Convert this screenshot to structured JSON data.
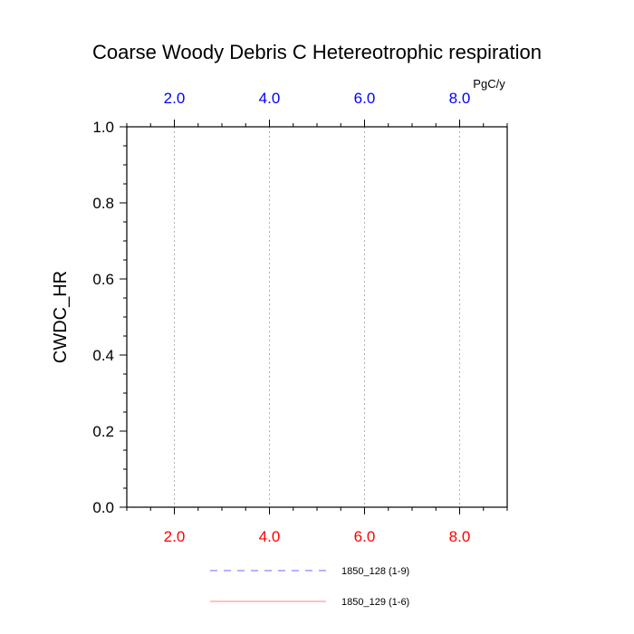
{
  "chart_data": {
    "type": "line",
    "title": "Coarse Woody Debris C Hetereotrophic respiration",
    "ylabel": "CWDC_HR",
    "top_axis_unit": "PgC/y",
    "xlim": [
      1,
      9
    ],
    "ylim": [
      0,
      1
    ],
    "x_ticks": [
      2,
      4,
      6,
      8
    ],
    "x_tick_labels": [
      "2.0",
      "4.0",
      "6.0",
      "8.0"
    ],
    "y_ticks": [
      0,
      0.2,
      0.4,
      0.6,
      0.8,
      1.0
    ],
    "y_tick_labels": [
      "0.0",
      "0.2",
      "0.4",
      "0.6",
      "0.8",
      "1.0"
    ],
    "bottom_axis_color": "#ff0000",
    "top_axis_color": "#0000ff",
    "grid": "vertical dotted",
    "legend_position": "bottom",
    "series": [
      {
        "name": "1850_128 (1-9)",
        "color": "#6a6aff",
        "dash": "dashed",
        "x": [
          1,
          2,
          3,
          4,
          5,
          6,
          7,
          8,
          9
        ],
        "values": [
          0,
          0,
          0,
          0,
          0,
          0,
          0,
          0,
          0
        ]
      },
      {
        "name": "1850_129 (1-6)",
        "color": "#ff8080",
        "dash": "solid",
        "x": [
          1,
          2,
          3,
          4,
          5,
          6
        ],
        "values": [
          0,
          0,
          0,
          0,
          0,
          0
        ]
      }
    ]
  }
}
